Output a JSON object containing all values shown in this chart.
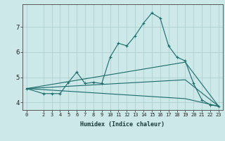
{
  "xlabel": "Humidex (Indice chaleur)",
  "background_color": "#cce8e8",
  "grid_color": "#aacccc",
  "line_color": "#1a6b6b",
  "x_ticks": [
    0,
    2,
    3,
    4,
    5,
    6,
    7,
    8,
    9,
    10,
    11,
    12,
    13,
    14,
    15,
    16,
    17,
    18,
    19,
    20,
    21,
    22,
    23
  ],
  "ylim": [
    3.7,
    7.9
  ],
  "xlim": [
    -0.5,
    23.5
  ],
  "yticks": [
    4,
    5,
    6,
    7
  ],
  "line1_x": [
    0,
    2,
    3,
    4,
    5,
    6,
    7,
    8,
    9,
    10,
    11,
    12,
    13,
    14,
    15,
    16,
    17,
    18,
    19,
    20,
    21,
    22,
    23
  ],
  "line1_y": [
    4.55,
    4.35,
    4.35,
    4.35,
    4.8,
    5.2,
    4.75,
    4.8,
    4.75,
    5.8,
    6.35,
    6.25,
    6.65,
    7.15,
    7.55,
    7.35,
    6.25,
    5.8,
    5.65,
    4.75,
    4.1,
    3.9,
    3.85
  ],
  "line2_x": [
    0,
    19,
    23
  ],
  "line2_y": [
    4.55,
    5.6,
    3.85
  ],
  "line3_x": [
    0,
    19,
    23
  ],
  "line3_y": [
    4.55,
    4.9,
    3.85
  ],
  "line4_x": [
    0,
    19,
    23
  ],
  "line4_y": [
    4.55,
    4.15,
    3.85
  ]
}
